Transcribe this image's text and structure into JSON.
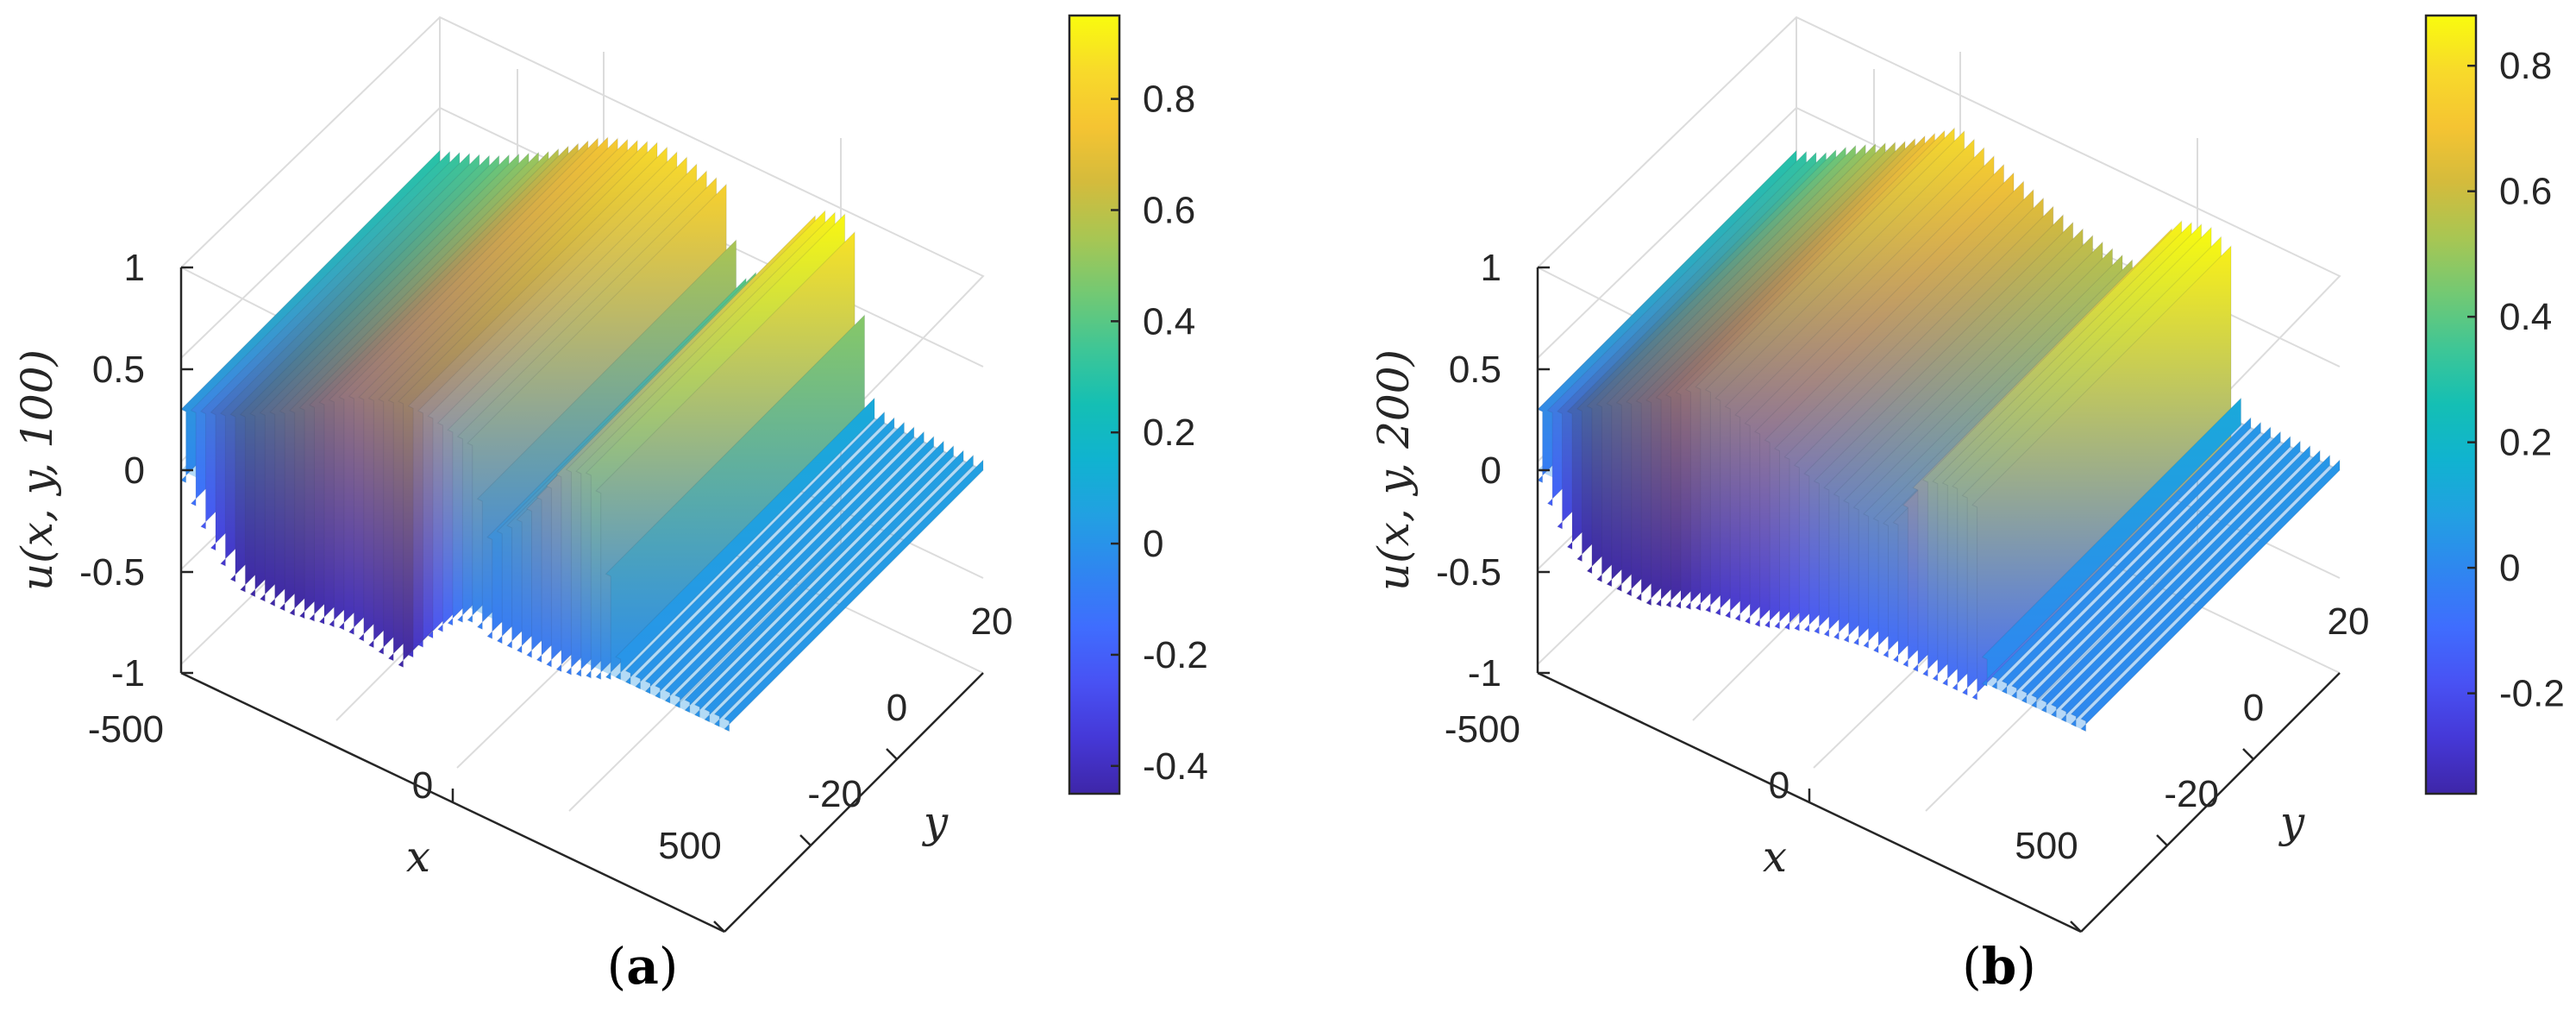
{
  "colormap": [
    "#3e26a8",
    "#4538d7",
    "#4852f4",
    "#3f6dfe",
    "#2f86f0",
    "#22a0e2",
    "#10b3d0",
    "#14bfb4",
    "#3ec696",
    "#73c973",
    "#a8c653",
    "#d4bb3c",
    "#f5c432",
    "#f8da2a",
    "#f9fb0e"
  ],
  "captions": {
    "open": "(",
    "close": ")"
  },
  "chart_data": [
    {
      "type": "surface",
      "panel_label": "a",
      "zlabel": "u(x, y, 100)",
      "xlabel": "x",
      "ylabel": "y",
      "xlim": [
        -500,
        500
      ],
      "ylim": [
        -30,
        30
      ],
      "zlim": [
        -1,
        1
      ],
      "x_ticks": [
        "-500",
        "0",
        "500"
      ],
      "y_ticks": [
        "-20",
        "0",
        "20"
      ],
      "z_ticks": [
        "-1",
        "-0.5",
        "0",
        "0.5",
        "1"
      ],
      "colorbar": {
        "min": -0.45,
        "max": 0.95,
        "ticks": [
          "-0.4",
          "-0.2",
          "0",
          "0.2",
          "0.4",
          "0.6",
          "0.8"
        ],
        "tick_values": [
          -0.4,
          -0.2,
          0,
          0.2,
          0.4,
          0.6,
          0.8
        ]
      },
      "profile_x": [
        -500,
        -450,
        -400,
        -300,
        -200,
        -100,
        -50,
        0,
        40,
        50,
        120,
        200,
        260,
        300,
        320,
        500
      ],
      "profile_top": [
        0.3,
        0.35,
        0.4,
        0.55,
        0.75,
        0.85,
        0.85,
        0.82,
        0.8,
        0.35,
        0.55,
        0.9,
        0.95,
        0.1,
        0.05,
        0.05
      ],
      "profile_bottom": [
        -0.05,
        -0.3,
        -0.45,
        -0.45,
        -0.4,
        -0.45,
        -0.25,
        -0.1,
        -0.05,
        -0.1,
        -0.1,
        -0.1,
        -0.05,
        0.0,
        0.0,
        0.0
      ]
    },
    {
      "type": "surface",
      "panel_label": "b",
      "zlabel": "u(x, y, 200)",
      "xlabel": "x",
      "ylabel": "y",
      "xlim": [
        -500,
        500
      ],
      "ylim": [
        -30,
        30
      ],
      "zlim": [
        -1,
        1
      ],
      "x_ticks": [
        "-500",
        "0",
        "500"
      ],
      "y_ticks": [
        "-20",
        "0",
        "20"
      ],
      "z_ticks": [
        "-1",
        "-0.5",
        "0",
        "0.5",
        "1"
      ],
      "colorbar": {
        "min": -0.36,
        "max": 0.88,
        "ticks": [
          "-0.2",
          "0",
          "0.2",
          "0.4",
          "0.6",
          "0.8"
        ],
        "tick_values": [
          -0.2,
          0,
          0.2,
          0.4,
          0.6,
          0.8
        ]
      },
      "profile_x": [
        -500,
        -450,
        -400,
        -300,
        -200,
        -100,
        0,
        100,
        150,
        200,
        260,
        300,
        320,
        500
      ],
      "profile_top": [
        0.3,
        0.35,
        0.45,
        0.6,
        0.8,
        0.7,
        0.6,
        0.55,
        0.55,
        0.85,
        0.9,
        0.85,
        0.05,
        0.05
      ],
      "profile_bottom": [
        -0.05,
        -0.3,
        -0.4,
        -0.4,
        -0.3,
        -0.25,
        -0.15,
        -0.1,
        -0.1,
        -0.1,
        -0.1,
        -0.1,
        0.0,
        0.0
      ]
    }
  ]
}
